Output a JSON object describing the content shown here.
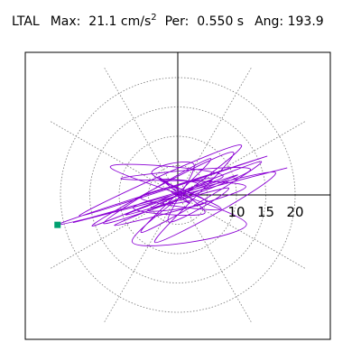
{
  "header": {
    "station": "LTAL",
    "max_label": "Max:",
    "max_value": "21.1",
    "max_unit": "cm/s",
    "max_unit_exp": "2",
    "per_label": "Per:",
    "per_value": "0.550 s",
    "ang_label": "Ang:",
    "ang_value": "193.9"
  },
  "chart_data": {
    "type": "scatter",
    "title": "",
    "xlabel": "",
    "ylabel": "",
    "axis_type": "polar",
    "r_ticks": [
      5,
      10,
      15,
      20
    ],
    "r_tick_labels": [
      "10",
      "15",
      "20"
    ],
    "r_max": 25,
    "angular_grid_step_deg": 30,
    "grid": true,
    "max_amplitude": 21.1,
    "max_angle_deg": 193.9,
    "max_point": {
      "x": -20.5,
      "y": -5.1
    },
    "trace_color": "#8a00d4",
    "marker_color": "#00a070",
    "series": [
      {
        "name": "",
        "trace_points": [
          [
            0,
            0
          ],
          [
            1.5,
            0.6
          ],
          [
            -1.2,
            1.3
          ],
          [
            2.3,
            -0.8
          ],
          [
            -2.6,
            -1.4
          ],
          [
            3.5,
            1.8
          ],
          [
            -3.0,
            2.5
          ],
          [
            4.8,
            -1.2
          ],
          [
            -5.1,
            -2.6
          ],
          [
            6.2,
            2.9
          ],
          [
            -6.3,
            -0.5
          ],
          [
            7.4,
            -2.4
          ],
          [
            -4.4,
            3.6
          ],
          [
            2.8,
            5.1
          ],
          [
            -1.6,
            -4.6
          ],
          [
            8.6,
            1.2
          ],
          [
            -8.9,
            -3.4
          ],
          [
            10.2,
            3.4
          ],
          [
            -10.8,
            -5.2
          ],
          [
            11.6,
            1.4
          ],
          [
            -9.7,
            2.8
          ],
          [
            12.4,
            4.3
          ],
          [
            -12.6,
            -4.9
          ],
          [
            5.6,
            6.2
          ],
          [
            -6.2,
            -6.4
          ],
          [
            14.2,
            5.7
          ],
          [
            -14.6,
            -5.3
          ],
          [
            9.4,
            7.3
          ],
          [
            -3.9,
            -8.1
          ],
          [
            16.5,
            3.9
          ],
          [
            -17.8,
            -4.7
          ],
          [
            18.6,
            4.6
          ],
          [
            -20.5,
            -5.1
          ],
          [
            15.2,
            6.6
          ],
          [
            -16.8,
            -3.6
          ],
          [
            10.8,
            8.5
          ],
          [
            -7.8,
            -7.9
          ],
          [
            11.7,
            -4.9
          ],
          [
            -11.5,
            4.7
          ],
          [
            7.7,
            3.3
          ],
          [
            -7.6,
            -2.1
          ],
          [
            4.6,
            -3.1
          ],
          [
            -3.2,
            3.0
          ],
          [
            2.0,
            -1.4
          ],
          [
            -1.2,
            0.6
          ],
          [
            0.4,
            0.1
          ]
        ]
      }
    ]
  }
}
